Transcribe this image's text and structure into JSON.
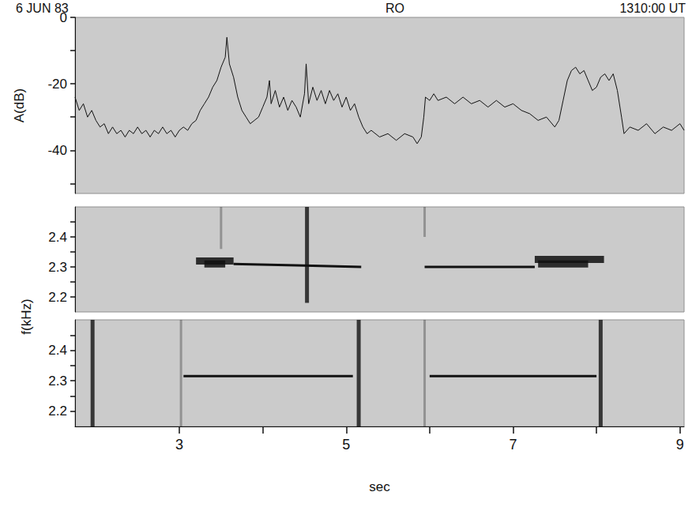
{
  "header": {
    "left": "6 JUN 83",
    "center": "RO",
    "right": "1310:00 UT"
  },
  "chart_data": [
    {
      "type": "line",
      "ylabel": "A(dB)",
      "color": "#111111",
      "xlim": [
        1.75,
        9.05
      ],
      "ylim": [
        -53,
        0
      ],
      "yticks": [
        -40,
        -20,
        0
      ],
      "yminor": [
        -50,
        -30,
        -10
      ],
      "tick_labels": "y",
      "grid": false,
      "x": [
        1.75,
        1.8,
        1.85,
        1.9,
        1.95,
        2.0,
        2.05,
        2.1,
        2.15,
        2.2,
        2.25,
        2.3,
        2.35,
        2.4,
        2.45,
        2.5,
        2.55,
        2.6,
        2.65,
        2.7,
        2.75,
        2.8,
        2.85,
        2.9,
        2.95,
        3.0,
        3.05,
        3.1,
        3.15,
        3.2,
        3.25,
        3.3,
        3.35,
        3.4,
        3.45,
        3.5,
        3.55,
        3.57,
        3.6,
        3.65,
        3.7,
        3.75,
        3.8,
        3.85,
        3.9,
        3.95,
        4.0,
        4.05,
        4.08,
        4.1,
        4.15,
        4.2,
        4.25,
        4.3,
        4.35,
        4.4,
        4.45,
        4.5,
        4.52,
        4.55,
        4.6,
        4.65,
        4.7,
        4.75,
        4.8,
        4.85,
        4.9,
        4.95,
        5.0,
        5.05,
        5.1,
        5.15,
        5.2,
        5.25,
        5.3,
        5.4,
        5.5,
        5.6,
        5.7,
        5.8,
        5.85,
        5.9,
        5.93,
        5.95,
        6.0,
        6.05,
        6.1,
        6.2,
        6.3,
        6.4,
        6.5,
        6.6,
        6.7,
        6.8,
        6.9,
        7.0,
        7.1,
        7.2,
        7.3,
        7.4,
        7.5,
        7.55,
        7.6,
        7.65,
        7.7,
        7.75,
        7.8,
        7.85,
        7.9,
        7.95,
        8.0,
        8.05,
        8.1,
        8.15,
        8.2,
        8.25,
        8.3,
        8.33,
        8.4,
        8.5,
        8.6,
        8.7,
        8.8,
        8.9,
        9.0,
        9.05
      ],
      "values": [
        -24,
        -28,
        -26,
        -30,
        -28,
        -31,
        -33,
        -32,
        -35,
        -33,
        -35,
        -34,
        -36,
        -34,
        -35,
        -33,
        -35,
        -34,
        -36,
        -34,
        -35,
        -33,
        -35,
        -34,
        -36,
        -34,
        -33,
        -34,
        -32,
        -31,
        -28,
        -26,
        -24,
        -21,
        -19,
        -15,
        -12,
        -6,
        -14,
        -18,
        -24,
        -28,
        -30,
        -32,
        -31,
        -30,
        -27,
        -24,
        -19,
        -26,
        -22,
        -27,
        -24,
        -28,
        -25,
        -27,
        -30,
        -23,
        -14,
        -26,
        -21,
        -25,
        -22,
        -26,
        -22,
        -25,
        -23,
        -27,
        -24,
        -28,
        -26,
        -30,
        -33,
        -35,
        -34,
        -36,
        -35,
        -37,
        -35,
        -36,
        -38,
        -36,
        -30,
        -24,
        -25,
        -23,
        -25,
        -24,
        -26,
        -24,
        -26,
        -25,
        -27,
        -25,
        -27,
        -26,
        -28,
        -29,
        -31,
        -30,
        -33,
        -31,
        -25,
        -19,
        -16,
        -15,
        -17,
        -16,
        -19,
        -22,
        -21,
        -18,
        -17,
        -19,
        -17,
        -22,
        -30,
        -35,
        -33,
        -34,
        -32,
        -35,
        -33,
        -34,
        -32,
        -34
      ]
    },
    {
      "type": "spectrogram",
      "ylabel": "f(kHz)",
      "color": "#111111",
      "xlim": [
        1.75,
        9.05
      ],
      "ylim": [
        2.15,
        2.5
      ],
      "yticks": [
        2.2,
        2.3,
        2.4
      ],
      "yminor": [
        2.25,
        2.35,
        2.45
      ],
      "tick_labels": "y",
      "grid": false,
      "tones": [
        {
          "x": [
            3.65,
            4.4,
            5.18
          ],
          "f": [
            2.31,
            2.305,
            2.3
          ]
        },
        {
          "x": [
            5.94,
            7.26
          ],
          "f": [
            2.3,
            2.3
          ]
        }
      ],
      "bursts": [
        {
          "x": [
            3.2,
            3.65
          ],
          "f": [
            2.32,
            2.32
          ]
        },
        {
          "x": [
            3.3,
            3.55
          ],
          "f": [
            2.31,
            2.31
          ]
        },
        {
          "x": [
            7.26,
            8.09
          ],
          "f": [
            2.325,
            2.325
          ]
        },
        {
          "x": [
            7.3,
            7.9
          ],
          "f": [
            2.31,
            2.31
          ]
        }
      ],
      "sferics": [
        {
          "x": 4.53,
          "f": [
            2.18,
            2.5
          ]
        }
      ],
      "weak_sferics": [
        {
          "x": 5.94,
          "f": [
            2.4,
            2.5
          ]
        },
        {
          "x": 3.5,
          "f": [
            2.36,
            2.5
          ]
        }
      ]
    },
    {
      "type": "spectrogram",
      "color": "#111111",
      "xlim": [
        1.75,
        9.05
      ],
      "ylim": [
        2.15,
        2.5
      ],
      "yticks": [
        2.2,
        2.3,
        2.4
      ],
      "yminor": [
        2.25,
        2.35,
        2.45
      ],
      "xticks": [
        3,
        5,
        7,
        9
      ],
      "xminor": [
        4,
        6,
        8
      ],
      "xlabel": "sec",
      "tick_labels": true,
      "grid": false,
      "tones": [
        {
          "x": [
            3.05,
            5.08
          ],
          "f": [
            2.315,
            2.315
          ]
        },
        {
          "x": [
            6.0,
            8.0
          ],
          "f": [
            2.315,
            2.315
          ]
        }
      ],
      "bursts": [],
      "sferics": [
        {
          "x": 1.96,
          "f": [
            2.15,
            2.5
          ]
        },
        {
          "x": 5.15,
          "f": [
            2.15,
            2.5
          ]
        },
        {
          "x": 8.05,
          "f": [
            2.15,
            2.5
          ]
        }
      ],
      "weak_sferics": [
        {
          "x": 3.02,
          "f": [
            2.15,
            2.5
          ]
        },
        {
          "x": 5.94,
          "f": [
            2.15,
            2.5
          ]
        }
      ]
    }
  ]
}
